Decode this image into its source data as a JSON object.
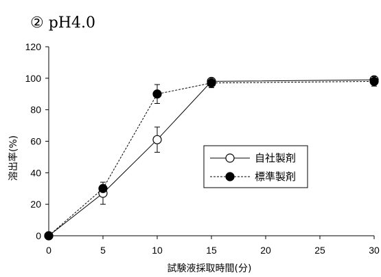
{
  "chart_data": {
    "type": "line",
    "title": "② pH4.0",
    "xlabel": "試験液採取時間(分)",
    "ylabel": "溶出率(%)",
    "xlim": [
      0,
      30
    ],
    "ylim": [
      0,
      120
    ],
    "x_ticks": [
      "0",
      "5",
      "10",
      "15",
      "20",
      "25",
      "30"
    ],
    "y_ticks": [
      "0",
      "20",
      "40",
      "60",
      "80",
      "100",
      "120"
    ],
    "grid": false,
    "legend_position": "right-center",
    "series": [
      {
        "name": "自社製剤",
        "marker": "open-circle",
        "line_style": "solid",
        "x": [
          0,
          5,
          10,
          15,
          30
        ],
        "values": [
          0,
          27,
          61,
          98,
          99
        ],
        "error": [
          0,
          7,
          8,
          2,
          2
        ]
      },
      {
        "name": "標準製剤",
        "marker": "filled-circle",
        "line_style": "dashed",
        "x": [
          0,
          5,
          10,
          15,
          30
        ],
        "values": [
          0,
          30,
          90,
          97,
          98
        ],
        "error": [
          0,
          2,
          6,
          3,
          3
        ]
      }
    ]
  }
}
